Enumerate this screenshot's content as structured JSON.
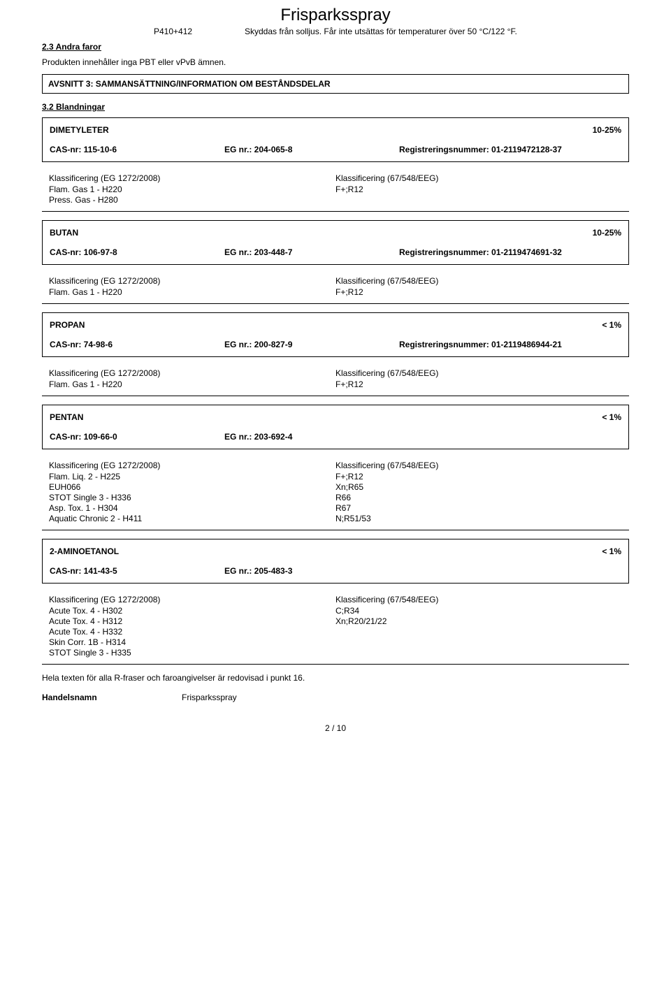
{
  "header": {
    "title": "Frisparksspray",
    "pcode": "P410+412",
    "pdesc": "Skyddas från solljus. Får inte utsättas för temperaturer över 50 °C/122 °F."
  },
  "section23": {
    "heading": "2.3 Andra faror",
    "text": "Produkten innehåller inga PBT eller vPvB ämnen."
  },
  "sectionBar": "AVSNITT 3: SAMMANSÄTTNING/INFORMATION OM BESTÅNDSDELAR",
  "section32": {
    "heading": "3.2 Blandningar"
  },
  "classHdrLeft": "Klassificering (EG 1272/2008)",
  "classHdrRight": "Klassificering (67/548/EEG)",
  "components": [
    {
      "name": "DIMETYLETER",
      "pct": "10-25%",
      "cas": "CAS-nr: 115-10-6",
      "eg": "EG nr.: 204-065-8",
      "reg": "Registreringsnummer: 01-2119472128-37",
      "clp": [
        "Flam. Gas 1 - H220",
        "Press. Gas - H280"
      ],
      "dsd": [
        "F+;R12"
      ]
    },
    {
      "name": "BUTAN",
      "pct": "10-25%",
      "cas": "CAS-nr: 106-97-8",
      "eg": "EG nr.: 203-448-7",
      "reg": "Registreringsnummer: 01-2119474691-32",
      "clp": [
        "Flam. Gas 1 - H220"
      ],
      "dsd": [
        "F+;R12"
      ]
    },
    {
      "name": "PROPAN",
      "pct": "< 1%",
      "cas": "CAS-nr: 74-98-6",
      "eg": "EG nr.: 200-827-9",
      "reg": "Registreringsnummer: 01-2119486944-21",
      "clp": [
        "Flam. Gas 1 - H220"
      ],
      "dsd": [
        "F+;R12"
      ]
    },
    {
      "name": "PENTAN",
      "pct": "< 1%",
      "cas": "CAS-nr: 109-66-0",
      "eg": "EG nr.: 203-692-4",
      "reg": "",
      "clp": [
        "Flam. Liq. 2 - H225",
        "EUH066",
        "STOT Single 3 - H336",
        "Asp. Tox. 1 - H304",
        "Aquatic Chronic 2 - H411"
      ],
      "dsd": [
        "F+;R12",
        "Xn;R65",
        "R66",
        "R67",
        "N;R51/53"
      ]
    },
    {
      "name": "2-AMINOETANOL",
      "pct": "< 1%",
      "cas": "CAS-nr: 141-43-5",
      "eg": "EG nr.: 205-483-3",
      "reg": "",
      "clp": [
        "Acute Tox. 4 - H302",
        "Acute Tox. 4 - H312",
        "Acute Tox. 4 - H332",
        "Skin Corr. 1B - H314",
        "STOT Single 3 - H335"
      ],
      "dsd": [
        "C;R34",
        "Xn;R20/21/22"
      ]
    }
  ],
  "fullTextNote": "Hela texten för alla R-fraser och faroangivelser är redovisad i punkt 16.",
  "handelsnamnLabel": "Handelsnamn",
  "handelsnamnValue": "Frisparksspray",
  "footer": "2 / 10"
}
